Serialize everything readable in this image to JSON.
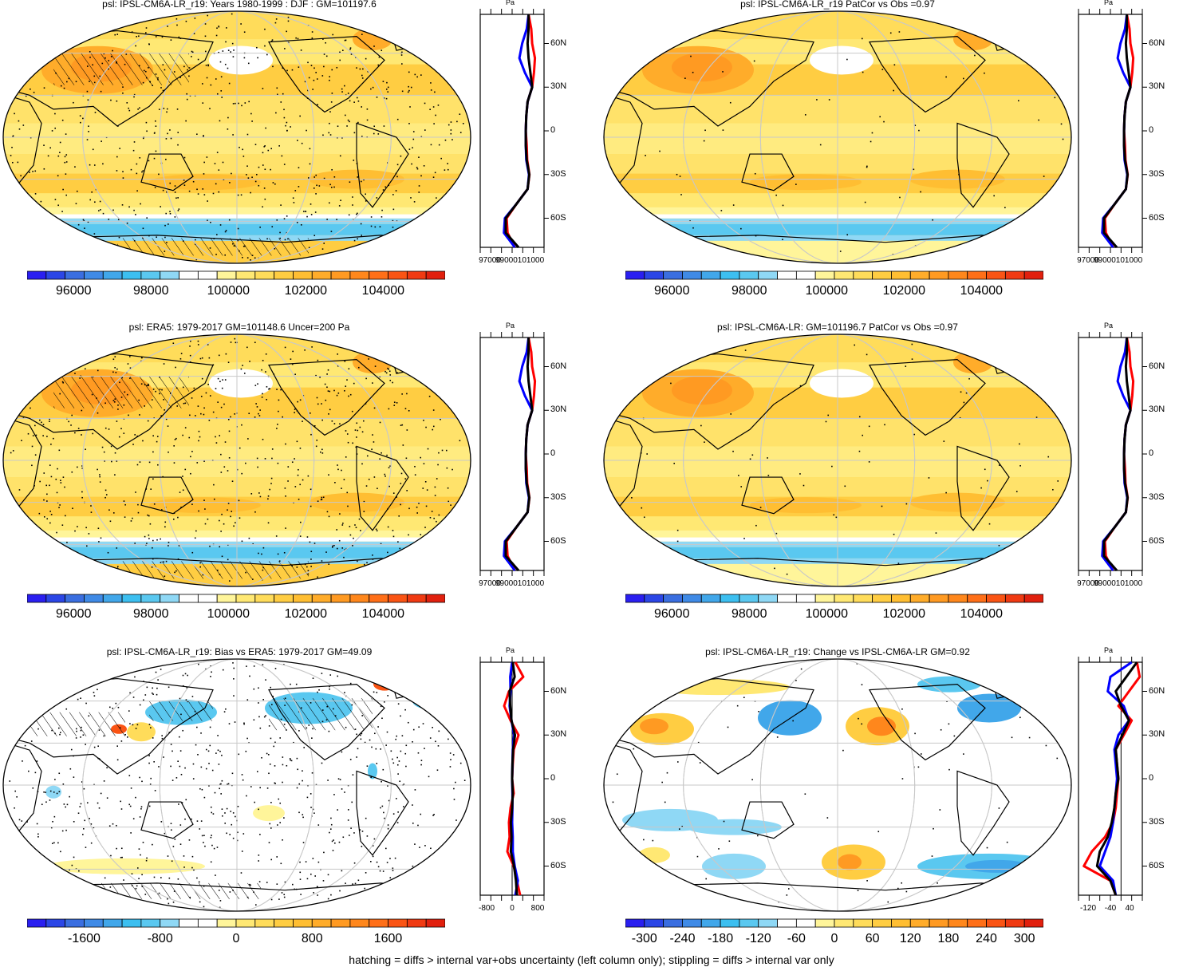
{
  "footer": "hatching = diffs > internal var+obs uncertainty (left column only); stippling = diffs > internal var only",
  "zonal_unit": "Pa",
  "lat_labels": [
    "60N",
    "30N",
    "0",
    "30S",
    "60S"
  ],
  "colors": {
    "scale_main": [
      "#2a1ff0",
      "#2b46e6",
      "#3a6ee0",
      "#3f8ae6",
      "#41a7ea",
      "#3cbff0",
      "#5ac8f0",
      "#8fd8f5",
      "#ffffff",
      "#ffffff",
      "#fff59a",
      "#ffe873",
      "#ffdc5a",
      "#ffcd42",
      "#ffbe32",
      "#ffac2a",
      "#ff9a22",
      "#ff871c",
      "#ff6f18",
      "#fa5414",
      "#f03a12",
      "#e1200e"
    ],
    "scale_diff": [
      "#2a1ff0",
      "#2b46e6",
      "#3a6ee0",
      "#3f8ae6",
      "#41a7ea",
      "#3cbff0",
      "#5ac8f0",
      "#8fd8f5",
      "#ffffff",
      "#ffffff",
      "#fff59a",
      "#ffe873",
      "#ffdc5a",
      "#ffcd42",
      "#ffbe32",
      "#ffac2a",
      "#ff9a22",
      "#ff871c",
      "#ff6f18",
      "#fa5414",
      "#f03a12",
      "#e1200e"
    ],
    "model": "#ff0000",
    "obs": "#0000ff",
    "mmm": "#000000"
  },
  "chart_data": [
    {
      "type": "heatmap",
      "title": "psl: IPSL-CM6A-LR_r19: Years 1980-1999 : DJF : GM=101197.6",
      "style": "main",
      "hatch": true,
      "colorbar_labels": [
        "96000",
        "98000",
        "100000",
        "102000",
        "104000"
      ],
      "colorbar_range": [
        94800,
        105600
      ],
      "zonal_ticks": [
        "97000",
        "99000101000"
      ],
      "zonal_xlim": [
        96000,
        103000
      ],
      "zonal_lat": [
        80,
        70,
        60,
        50,
        40,
        30,
        20,
        10,
        0,
        -10,
        -20,
        -30,
        -40,
        -50,
        -60,
        -70,
        -80
      ],
      "series": [
        {
          "name": "model",
          "color": "red",
          "values": [
            101300,
            101600,
            101700,
            102000,
            101900,
            101700,
            101200,
            101050,
            101000,
            101100,
            101150,
            101400,
            101200,
            100000,
            98900,
            99000,
            99800
          ]
        },
        {
          "name": "obs",
          "color": "blue",
          "values": [
            101300,
            101100,
            100600,
            100300,
            100900,
            101700,
            101200,
            101050,
            101000,
            101000,
            101050,
            101350,
            101200,
            100000,
            98700,
            98600,
            99800
          ]
        },
        {
          "name": "mmm",
          "color": "black",
          "values": [
            101300,
            101300,
            101200,
            101300,
            101500,
            101700,
            101200,
            101050,
            101000,
            101000,
            101100,
            101380,
            101200,
            100000,
            98800,
            98800,
            100200
          ]
        }
      ]
    },
    {
      "type": "heatmap",
      "title": "psl: IPSL-CM6A-LR_r19 PatCor vs Obs =0.97",
      "style": "main",
      "hatch": false,
      "colorbar_labels": [
        "96000",
        "98000",
        "100000",
        "102000",
        "104000"
      ],
      "colorbar_range": [
        94800,
        105600
      ],
      "zonal_ticks": [
        "97000",
        "99000101000"
      ],
      "zonal_xlim": [
        96000,
        103000
      ],
      "zonal_lat": [
        80,
        70,
        60,
        50,
        40,
        30,
        20,
        10,
        0,
        -10,
        -20,
        -30,
        -40,
        -50,
        -60,
        -70,
        -80
      ],
      "series": [
        {
          "name": "model",
          "color": "red",
          "values": [
            101300,
            101600,
            101700,
            102000,
            101900,
            101700,
            101200,
            101050,
            101000,
            101100,
            101150,
            101400,
            101200,
            100000,
            98900,
            99000,
            99800
          ]
        },
        {
          "name": "obs",
          "color": "blue",
          "values": [
            101300,
            101100,
            100600,
            100300,
            100900,
            101700,
            101200,
            101050,
            101000,
            101000,
            101050,
            101350,
            101200,
            100000,
            98700,
            98600,
            99800
          ]
        },
        {
          "name": "mmm",
          "color": "black",
          "values": [
            101300,
            101300,
            101200,
            101300,
            101500,
            101700,
            101200,
            101050,
            101000,
            101000,
            101100,
            101380,
            101200,
            100000,
            98800,
            98800,
            100200
          ]
        }
      ]
    },
    {
      "type": "heatmap",
      "title": "psl: ERA5: 1979-2017 GM=101148.6 Uncer=200 Pa",
      "style": "main",
      "hatch": true,
      "colorbar_labels": [
        "96000",
        "98000",
        "100000",
        "102000",
        "104000"
      ],
      "colorbar_range": [
        94800,
        105600
      ],
      "zonal_ticks": [
        "97000",
        "99000101000"
      ],
      "zonal_xlim": [
        96000,
        103000
      ],
      "zonal_lat": [
        80,
        70,
        60,
        50,
        40,
        30,
        20,
        10,
        0,
        -10,
        -20,
        -30,
        -40,
        -50,
        -60,
        -70,
        -80
      ],
      "series": [
        {
          "name": "model",
          "color": "red",
          "values": [
            101300,
            101600,
            101700,
            102000,
            101900,
            101700,
            101200,
            101050,
            101000,
            101100,
            101150,
            101400,
            101200,
            100000,
            98900,
            99000,
            99800
          ]
        },
        {
          "name": "obs",
          "color": "blue",
          "values": [
            101300,
            101100,
            100600,
            100300,
            100900,
            101700,
            101200,
            101050,
            101000,
            101000,
            101050,
            101350,
            101200,
            100000,
            98700,
            98600,
            99800
          ]
        },
        {
          "name": "mmm",
          "color": "black",
          "values": [
            101300,
            101300,
            101200,
            101300,
            101500,
            101700,
            101200,
            101050,
            101000,
            101000,
            101100,
            101380,
            101200,
            100000,
            98800,
            98800,
            100200
          ]
        }
      ]
    },
    {
      "type": "heatmap",
      "title": "psl: IPSL-CM6A-LR: GM=101196.7 PatCor vs Obs =0.97",
      "style": "main",
      "hatch": false,
      "colorbar_labels": [
        "96000",
        "98000",
        "100000",
        "102000",
        "104000"
      ],
      "colorbar_range": [
        94800,
        105600
      ],
      "zonal_ticks": [
        "97000",
        "99000101000"
      ],
      "zonal_xlim": [
        96000,
        103000
      ],
      "zonal_lat": [
        80,
        70,
        60,
        50,
        40,
        30,
        20,
        10,
        0,
        -10,
        -20,
        -30,
        -40,
        -50,
        -60,
        -70,
        -80
      ],
      "series": [
        {
          "name": "model",
          "color": "red",
          "values": [
            101300,
            101600,
            101700,
            102000,
            101900,
            101700,
            101200,
            101050,
            101000,
            101100,
            101150,
            101400,
            101200,
            100000,
            98900,
            99000,
            99800
          ]
        },
        {
          "name": "obs",
          "color": "blue",
          "values": [
            101300,
            101100,
            100600,
            100300,
            100900,
            101700,
            101200,
            101050,
            101000,
            101000,
            101050,
            101350,
            101200,
            100000,
            98700,
            98600,
            99800
          ]
        },
        {
          "name": "mmm",
          "color": "black",
          "values": [
            101300,
            101300,
            101200,
            101300,
            101500,
            101700,
            101200,
            101050,
            101000,
            101000,
            101100,
            101380,
            101200,
            100000,
            98800,
            98800,
            100200
          ]
        }
      ]
    },
    {
      "type": "heatmap",
      "title": "psl: IPSL-CM6A-LR_r19: Bias vs ERA5: 1979-2017 GM=49.09",
      "style": "bias",
      "hatch": true,
      "colorbar_labels": [
        "-1600",
        "-800",
        "0",
        "800",
        "1600"
      ],
      "colorbar_range": [
        -2200,
        2200
      ],
      "zonal_ticks": [
        "-800",
        "0",
        "800"
      ],
      "zonal_xlim": [
        -1000,
        1000
      ],
      "zonal_lat": [
        80,
        70,
        60,
        50,
        40,
        30,
        20,
        10,
        0,
        -10,
        -20,
        -30,
        -40,
        -50,
        -60,
        -70,
        -80
      ],
      "series": [
        {
          "name": "model",
          "color": "red",
          "values": [
            100,
            350,
            -100,
            -250,
            -50,
            200,
            50,
            20,
            0,
            50,
            -50,
            -100,
            -80,
            -150,
            50,
            150,
            250
          ]
        },
        {
          "name": "obs",
          "color": "blue",
          "values": [
            0,
            -60,
            -50,
            -80,
            -20,
            60,
            20,
            10,
            0,
            10,
            10,
            0,
            20,
            20,
            80,
            180,
            100
          ]
        },
        {
          "name": "mmm",
          "color": "black",
          "values": [
            20,
            80,
            -80,
            -60,
            -20,
            90,
            30,
            10,
            0,
            20,
            0,
            -40,
            -20,
            -40,
            60,
            120,
            150
          ]
        }
      ]
    },
    {
      "type": "heatmap",
      "title": "psl: IPSL-CM6A-LR_r19: Change vs IPSL-CM6A-LR GM=0.92",
      "style": "change",
      "hatch": false,
      "colorbar_labels": [
        "-300",
        "-240",
        "-180",
        "-120",
        "-60",
        "0",
        "60",
        "120",
        "180",
        "240",
        "300"
      ],
      "colorbar_range": [
        -330,
        330
      ],
      "zonal_ticks": [
        "-120",
        "-40",
        "40"
      ],
      "zonal_xlim": [
        -160,
        80
      ],
      "zonal_lat": [
        80,
        70,
        60,
        50,
        40,
        30,
        20,
        10,
        0,
        -10,
        -20,
        -30,
        -40,
        -50,
        -60,
        -70,
        -80
      ],
      "series": [
        {
          "name": "model",
          "color": "red",
          "values": [
            60,
            70,
            30,
            -10,
            40,
            10,
            -20,
            -15,
            -10,
            -15,
            -20,
            -30,
            -60,
            -110,
            -140,
            -40,
            -20
          ]
        },
        {
          "name": "obs",
          "color": "blue",
          "values": [
            40,
            -40,
            -50,
            10,
            30,
            -10,
            -25,
            -20,
            -15,
            -20,
            -25,
            -30,
            -40,
            -60,
            -80,
            -30,
            -20
          ]
        },
        {
          "name": "mmm",
          "color": "black",
          "values": [
            60,
            20,
            -20,
            0,
            30,
            5,
            -20,
            -15,
            -10,
            -20,
            -25,
            -35,
            -50,
            -80,
            -90,
            -40,
            -20
          ]
        }
      ]
    }
  ]
}
